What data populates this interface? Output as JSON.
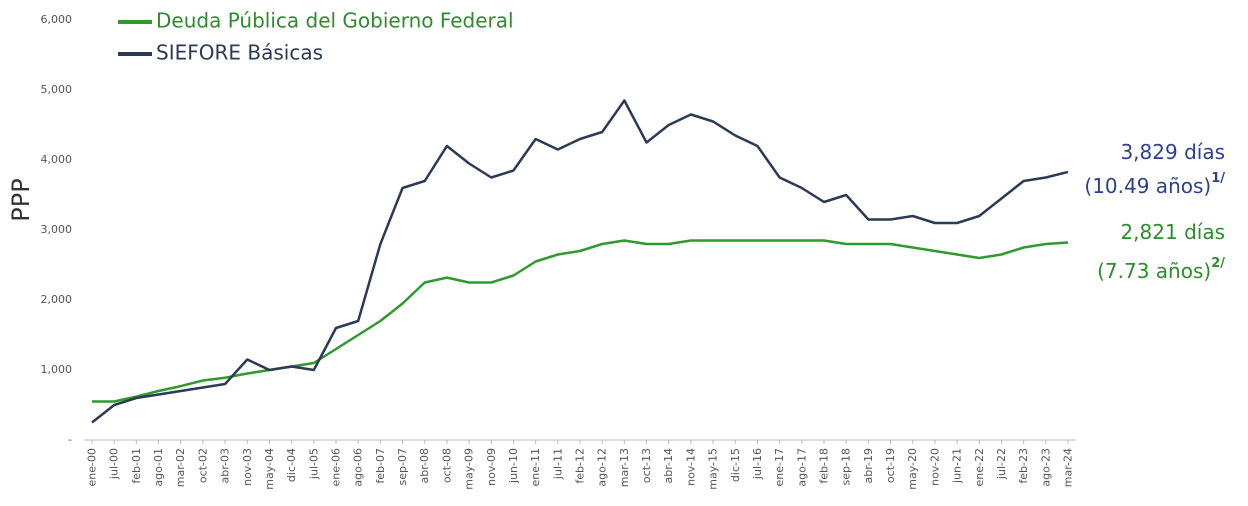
{
  "chart_data": {
    "type": "line",
    "ylabel": "PPP",
    "categories": [
      "ene-00",
      "jul-00",
      "feb-01",
      "ago-01",
      "mar-02",
      "oct-02",
      "abr-03",
      "nov-03",
      "may-04",
      "dic-04",
      "jul-05",
      "ene-06",
      "ago-06",
      "feb-07",
      "sep-07",
      "abr-08",
      "oct-08",
      "may-09",
      "nov-09",
      "jun-10",
      "ene-11",
      "jul-11",
      "feb-12",
      "ago-12",
      "mar-13",
      "oct-13",
      "abr-14",
      "nov-14",
      "may-15",
      "dic-15",
      "jul-16",
      "ene-17",
      "ago-17",
      "feb-18",
      "sep-18",
      "abr-19",
      "oct-19",
      "may-20",
      "nov-20",
      "jun-21",
      "ene-22",
      "jul-22",
      "feb-23",
      "ago-23",
      "mar-24"
    ],
    "series": [
      {
        "name": "Deuda Pública del Gobierno Federal",
        "color": "#2e9a2e",
        "values": [
          550,
          550,
          620,
          700,
          770,
          850,
          890,
          950,
          1000,
          1050,
          1100,
          1300,
          1500,
          1700,
          1950,
          2250,
          2320,
          2250,
          2250,
          2350,
          2550,
          2650,
          2700,
          2800,
          2850,
          2800,
          2800,
          2850,
          2850,
          2850,
          2850,
          2850,
          2850,
          2850,
          2800,
          2800,
          2800,
          2750,
          2700,
          2650,
          2600,
          2650,
          2750,
          2800,
          2821
        ]
      },
      {
        "name": "SIEFORE Básicas",
        "color": "#2b3a55",
        "values": [
          250,
          500,
          600,
          650,
          700,
          750,
          800,
          1150,
          1000,
          1050,
          1000,
          1600,
          1700,
          2800,
          3600,
          3700,
          4200,
          3950,
          3750,
          3850,
          4300,
          4150,
          4300,
          4400,
          4850,
          4250,
          4500,
          4650,
          4550,
          4350,
          4200,
          3750,
          3600,
          3400,
          3500,
          3150,
          3150,
          3200,
          3100,
          3100,
          3200,
          3450,
          3700,
          3750,
          3829
        ]
      }
    ],
    "ylim": [
      0,
      6000
    ],
    "yticks": [
      {
        "value": 0,
        "label": "-"
      },
      {
        "value": 1000,
        "label": "1,000"
      },
      {
        "value": 2000,
        "label": "2,000"
      },
      {
        "value": 3000,
        "label": "3,000"
      },
      {
        "value": 4000,
        "label": "4,000"
      },
      {
        "value": 5000,
        "label": "5,000"
      },
      {
        "value": 6000,
        "label": "6,000"
      }
    ],
    "annotations": [
      {
        "text": "3,829 días",
        "color": "#2e3f8f"
      },
      {
        "text": "(10.49 años)",
        "color": "#2e3f8f",
        "sup": "1/"
      },
      {
        "text": "2,821 días",
        "color": "#2e8b2e"
      },
      {
        "text": "(7.73 años)",
        "color": "#2e8b2e",
        "sup": "2/"
      }
    ]
  }
}
